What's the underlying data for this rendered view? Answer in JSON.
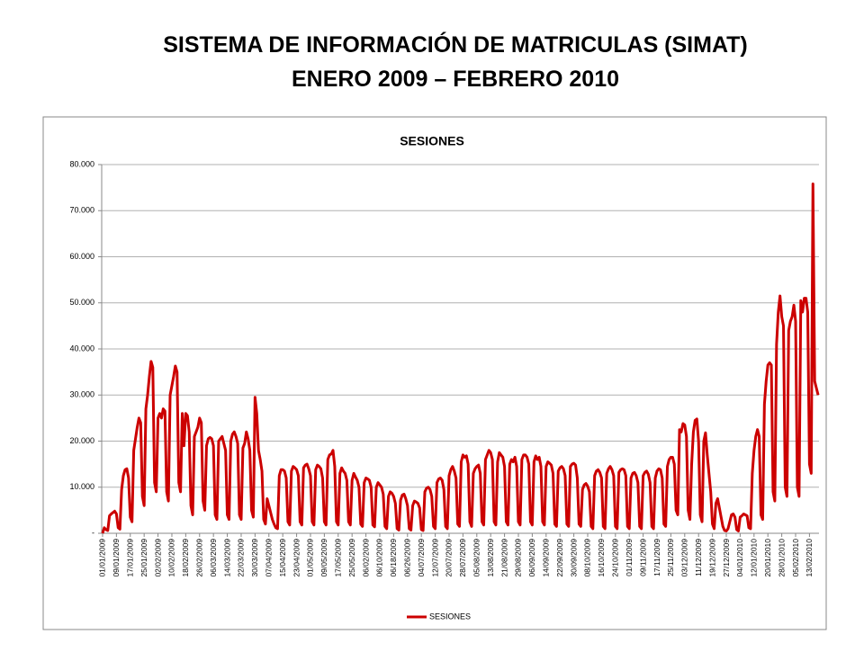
{
  "slide": {
    "title_lines": [
      "SISTEMA DE INFORMACIÓN DE MATRICULAS (SIMAT)",
      "ENERO 2009 – FEBRERO 2010"
    ]
  },
  "chart_data": {
    "type": "line",
    "title": "SESIONES",
    "legend": "bottom",
    "grid": true,
    "ylim": [
      0,
      80000
    ],
    "yticks": [
      {
        "value": 0,
        "label": "-"
      },
      {
        "value": 10000,
        "label": "10.000"
      },
      {
        "value": 20000,
        "label": "20.000"
      },
      {
        "value": 30000,
        "label": "30.000"
      },
      {
        "value": 40000,
        "label": "40.000"
      },
      {
        "value": 50000,
        "label": "50.000"
      },
      {
        "value": 60000,
        "label": "60.000"
      },
      {
        "value": 70000,
        "label": "70.000"
      },
      {
        "value": 80000,
        "label": "80.000"
      }
    ],
    "categories": [
      "01/01/2009",
      null,
      null,
      null,
      null,
      null,
      null,
      null,
      "09/01/2009",
      null,
      null,
      null,
      null,
      null,
      null,
      null,
      "17/01/2009",
      null,
      null,
      null,
      null,
      null,
      null,
      null,
      "25/01/2009",
      null,
      null,
      null,
      null,
      null,
      null,
      null,
      "02/02/2009",
      null,
      null,
      null,
      null,
      null,
      null,
      null,
      "10/02/2009",
      null,
      null,
      null,
      null,
      null,
      null,
      null,
      "18/02/2009",
      null,
      null,
      null,
      null,
      null,
      null,
      null,
      "26/02/2009",
      null,
      null,
      null,
      null,
      null,
      null,
      null,
      "06/03/2009",
      null,
      null,
      null,
      null,
      null,
      null,
      null,
      "14/03/2009",
      null,
      null,
      null,
      null,
      null,
      null,
      null,
      "22/03/2009",
      null,
      null,
      null,
      null,
      null,
      null,
      null,
      "30/03/2009",
      null,
      null,
      null,
      null,
      null,
      null,
      null,
      "07/04/2009",
      null,
      null,
      null,
      null,
      null,
      null,
      null,
      "15/04/2009",
      null,
      null,
      null,
      null,
      null,
      null,
      null,
      "23/04/2009",
      null,
      null,
      null,
      null,
      null,
      null,
      null,
      "01/05/2009",
      null,
      null,
      null,
      null,
      null,
      null,
      null,
      "09/05/2009",
      null,
      null,
      null,
      null,
      null,
      null,
      null,
      "17/05/2009",
      null,
      null,
      null,
      null,
      null,
      null,
      null,
      "25/05/2009",
      null,
      null,
      null,
      null,
      null,
      null,
      null,
      "06/02/2009",
      null,
      null,
      null,
      null,
      null,
      null,
      null,
      "06/10/2009",
      null,
      null,
      null,
      null,
      null,
      null,
      null,
      "06/18/2009",
      null,
      null,
      null,
      null,
      null,
      null,
      null,
      "06/26/2009",
      null,
      null,
      null,
      null,
      null,
      null,
      null,
      "04/07/2009",
      null,
      null,
      null,
      null,
      null,
      null,
      null,
      "12/07/2009",
      null,
      null,
      null,
      null,
      null,
      null,
      null,
      "20/07/2009",
      null,
      null,
      null,
      null,
      null,
      null,
      null,
      "28/07/2009",
      null,
      null,
      null,
      null,
      null,
      null,
      null,
      "05/08/2009",
      null,
      null,
      null,
      null,
      null,
      null,
      null,
      "13/08/2009",
      null,
      null,
      null,
      null,
      null,
      null,
      null,
      "21/08/2009",
      null,
      null,
      null,
      null,
      null,
      null,
      null,
      "29/08/2009",
      null,
      null,
      null,
      null,
      null,
      null,
      null,
      "06/09/2009",
      null,
      null,
      null,
      null,
      null,
      null,
      null,
      "14/09/2009",
      null,
      null,
      null,
      null,
      null,
      null,
      null,
      "22/09/2009",
      null,
      null,
      null,
      null,
      null,
      null,
      null,
      "30/09/2009",
      null,
      null,
      null,
      null,
      null,
      null,
      null,
      "08/10/2009",
      null,
      null,
      null,
      null,
      null,
      null,
      null,
      "16/10/2009",
      null,
      null,
      null,
      null,
      null,
      null,
      null,
      "24/10/2009",
      null,
      null,
      null,
      null,
      null,
      null,
      null,
      "01/11/2009",
      null,
      null,
      null,
      null,
      null,
      null,
      null,
      "09/11/2009",
      null,
      null,
      null,
      null,
      null,
      null,
      null,
      "17/11/2009",
      null,
      null,
      null,
      null,
      null,
      null,
      null,
      "25/11/2009",
      null,
      null,
      null,
      null,
      null,
      null,
      null,
      "03/12/2009",
      null,
      null,
      null,
      null,
      null,
      null,
      null,
      "11/12/2009",
      null,
      null,
      null,
      null,
      null,
      null,
      null,
      "19/12/2009",
      null,
      null,
      null,
      null,
      null,
      null,
      null,
      "27/12/2009",
      null,
      null,
      null,
      null,
      null,
      null,
      null,
      "04/01/2010",
      null,
      null,
      null,
      null,
      null,
      null,
      null,
      "12/01/2010",
      null,
      null,
      null,
      null,
      null,
      null,
      null,
      "20/01/2010",
      null,
      null,
      null,
      null,
      null,
      null,
      null,
      "28/01/2010",
      null,
      null,
      null,
      null,
      null,
      null,
      null,
      "05/02/2010",
      null,
      null,
      null,
      null,
      null,
      null,
      null,
      "13/02/2010",
      null,
      null,
      null,
      null,
      null
    ],
    "series": [
      {
        "name": "SESIONES",
        "color": "#cc0000",
        "values": [
          0,
          1200,
          800,
          600,
          3800,
          4200,
          4500,
          4800,
          4200,
          1200,
          900,
          9500,
          12500,
          13800,
          14000,
          12000,
          3500,
          2500,
          18000,
          20500,
          23000,
          25000,
          24000,
          8000,
          6000,
          27000,
          30000,
          34000,
          37300,
          36000,
          11000,
          9000,
          25000,
          26000,
          25000,
          27000,
          26500,
          9000,
          7000,
          30000,
          32000,
          34000,
          36300,
          35000,
          11000,
          9000,
          26000,
          19000,
          26000,
          25500,
          22000,
          6000,
          4000,
          21000,
          22000,
          23000,
          25000,
          24000,
          7000,
          5000,
          19000,
          20500,
          20800,
          20500,
          19000,
          4000,
          3000,
          20000,
          20500,
          21000,
          19500,
          18000,
          4000,
          3000,
          20000,
          21500,
          22000,
          21000,
          19500,
          4000,
          3000,
          18500,
          19500,
          22000,
          20500,
          18000,
          5000,
          3500,
          29500,
          26000,
          18000,
          16000,
          13500,
          3000,
          2000,
          7500,
          6000,
          4500,
          3000,
          2000,
          1200,
          1000,
          12500,
          13800,
          13800,
          13500,
          12000,
          2500,
          1800,
          13500,
          14500,
          14200,
          13800,
          12500,
          2500,
          1800,
          14200,
          14800,
          15000,
          14000,
          12500,
          2500,
          1800,
          13800,
          14800,
          14500,
          14000,
          12000,
          2500,
          1800,
          16000,
          17000,
          17200,
          18000,
          14500,
          2500,
          1800,
          13000,
          14200,
          13500,
          13000,
          11500,
          2500,
          1800,
          11500,
          13000,
          12200,
          11500,
          10000,
          2000,
          1500,
          11000,
          12000,
          11800,
          11500,
          10000,
          1800,
          1400,
          10000,
          11000,
          10500,
          10000,
          8500,
          1500,
          1000,
          8000,
          9000,
          8700,
          8000,
          6500,
          1000,
          700,
          7200,
          8300,
          8500,
          7500,
          6000,
          1000,
          700,
          6000,
          7000,
          6800,
          6500,
          5500,
          800,
          600,
          9000,
          9800,
          10000,
          9500,
          8000,
          1500,
          1000,
          11000,
          11800,
          12000,
          11500,
          9500,
          1500,
          1000,
          12500,
          13800,
          14500,
          13500,
          12000,
          2000,
          1500,
          15500,
          17000,
          16500,
          16800,
          15000,
          2500,
          1500,
          13000,
          14000,
          14500,
          14800,
          13000,
          2500,
          1800,
          16000,
          17000,
          18000,
          17500,
          16000,
          2500,
          1800,
          15500,
          17500,
          17000,
          16500,
          14500,
          2500,
          1800,
          15000,
          16000,
          15500,
          16500,
          14500,
          2500,
          1800,
          16000,
          17000,
          17000,
          16500,
          15000,
          2500,
          1800,
          15500,
          16800,
          16000,
          16500,
          14500,
          2500,
          1800,
          14500,
          15500,
          15200,
          14800,
          13000,
          2000,
          1500,
          13500,
          14200,
          14500,
          14000,
          12500,
          2000,
          1500,
          14500,
          15000,
          15200,
          14800,
          12000,
          2000,
          1500,
          9500,
          10500,
          10800,
          10200,
          9000,
          1500,
          1000,
          12500,
          13500,
          13800,
          13200,
          12000,
          1500,
          1000,
          13000,
          14000,
          14500,
          13800,
          12500,
          1500,
          1000,
          13200,
          13800,
          14000,
          13800,
          12500,
          1500,
          1000,
          12000,
          13000,
          13200,
          12500,
          11000,
          1500,
          1000,
          12500,
          13200,
          13500,
          12800,
          11000,
          1500,
          1000,
          12000,
          13500,
          14000,
          13800,
          12000,
          2000,
          1500,
          14500,
          16000,
          16500,
          16500,
          15000,
          5000,
          4000,
          22500,
          22000,
          23800,
          23500,
          21000,
          5000,
          3000,
          15000,
          22000,
          24500,
          24800,
          20000,
          4000,
          2500,
          20000,
          21800,
          17000,
          13000,
          9000,
          2000,
          1000,
          6500,
          7500,
          5500,
          3500,
          1500,
          600,
          500,
          1000,
          2500,
          4000,
          4200,
          3500,
          800,
          500,
          3500,
          3800,
          4200,
          4000,
          3800,
          1200,
          1000,
          13000,
          18000,
          21000,
          22500,
          21000,
          4000,
          3000,
          28000,
          33000,
          36500,
          37000,
          36500,
          9000,
          7000,
          41000,
          48000,
          51500,
          47000,
          45000,
          10000,
          8000,
          44000,
          46000,
          47000,
          49500,
          46000,
          10000,
          8000,
          50500,
          48000,
          51000,
          51000,
          48000,
          15000,
          13000,
          75800,
          33000,
          31500,
          30000
        ]
      }
    ]
  }
}
